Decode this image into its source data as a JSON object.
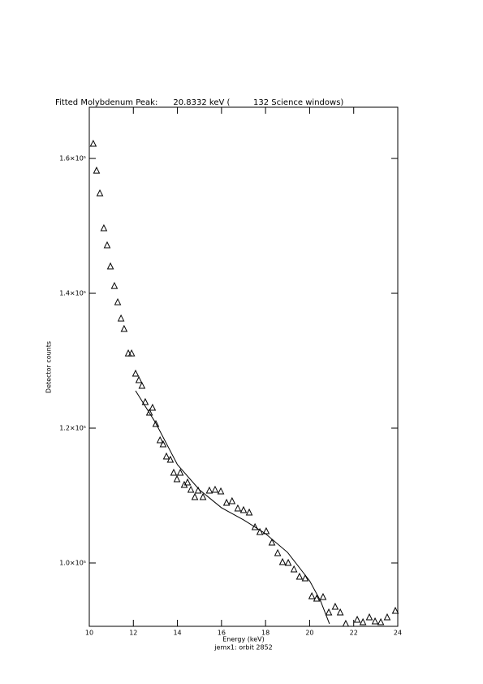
{
  "chart_data": {
    "type": "scatter",
    "title": "Fitted Molybdenum Peak:      20.8332 keV (         132 Science windows)",
    "x_label": "Energy (keV)",
    "subtitle": "jemx1: orbit 2852",
    "y_label": "Detector counts",
    "xlim": [
      10,
      24
    ],
    "xticks": [
      10,
      12,
      14,
      16,
      18,
      20,
      22,
      24
    ],
    "ylim": [
      90600,
      167600
    ],
    "yticks": [
      {
        "value": 100000,
        "label": "1.0×10⁵"
      },
      {
        "value": 120000,
        "label": "1.2×10⁵"
      },
      {
        "value": 140000,
        "label": "1.4×10⁵"
      },
      {
        "value": 160000,
        "label": "1.6×10⁵"
      }
    ],
    "color": "#000000",
    "series": [
      {
        "type": "scatter",
        "x": [
          10.18,
          10.33,
          10.48,
          10.66,
          10.81,
          10.96,
          11.14,
          11.29,
          11.44,
          11.58,
          11.77,
          11.92,
          12.1,
          12.25,
          12.39,
          12.54,
          12.73,
          12.87,
          13.02,
          13.21,
          13.35,
          13.5,
          13.68,
          13.83,
          13.98,
          14.13,
          14.31,
          14.46,
          14.61,
          14.79,
          14.94,
          15.16,
          15.45,
          15.71,
          15.97,
          16.23,
          16.48,
          16.74,
          17.0,
          17.26,
          17.52,
          17.74,
          18.03,
          18.29,
          18.55,
          18.77,
          19.03,
          19.29,
          19.54,
          19.8,
          20.1,
          20.32,
          20.61,
          20.87,
          21.16,
          21.39,
          21.64,
          22.16,
          22.42,
          22.71,
          22.97,
          23.23,
          23.52,
          23.89
        ],
        "values": [
          162170,
          158190,
          154820,
          149640,
          147110,
          143980,
          141080,
          138670,
          136260,
          134700,
          131080,
          131080,
          128070,
          127110,
          126270,
          123860,
          122290,
          123010,
          120600,
          118190,
          117590,
          115780,
          115300,
          113370,
          112410,
          113370,
          111570,
          111930,
          110850,
          109760,
          110730,
          109760,
          110730,
          110850,
          110610,
          108920,
          109160,
          108080,
          107830,
          107470,
          105300,
          104580,
          104700,
          103010,
          101450,
          100120,
          100000,
          99040,
          97950,
          97710,
          95060,
          94700,
          94940,
          92650,
          93490,
          92650,
          90960,
          91560,
          91200,
          91920,
          91320,
          91200,
          91920,
          92890
        ]
      },
      {
        "type": "line",
        "x": [
          12.1,
          13,
          14,
          15,
          16,
          17,
          18,
          19,
          20,
          20.5,
          20.9
        ],
        "values": [
          125540,
          120840,
          114580,
          110850,
          108190,
          106390,
          104340,
          101560,
          97350,
          94340,
          90970
        ]
      }
    ]
  }
}
